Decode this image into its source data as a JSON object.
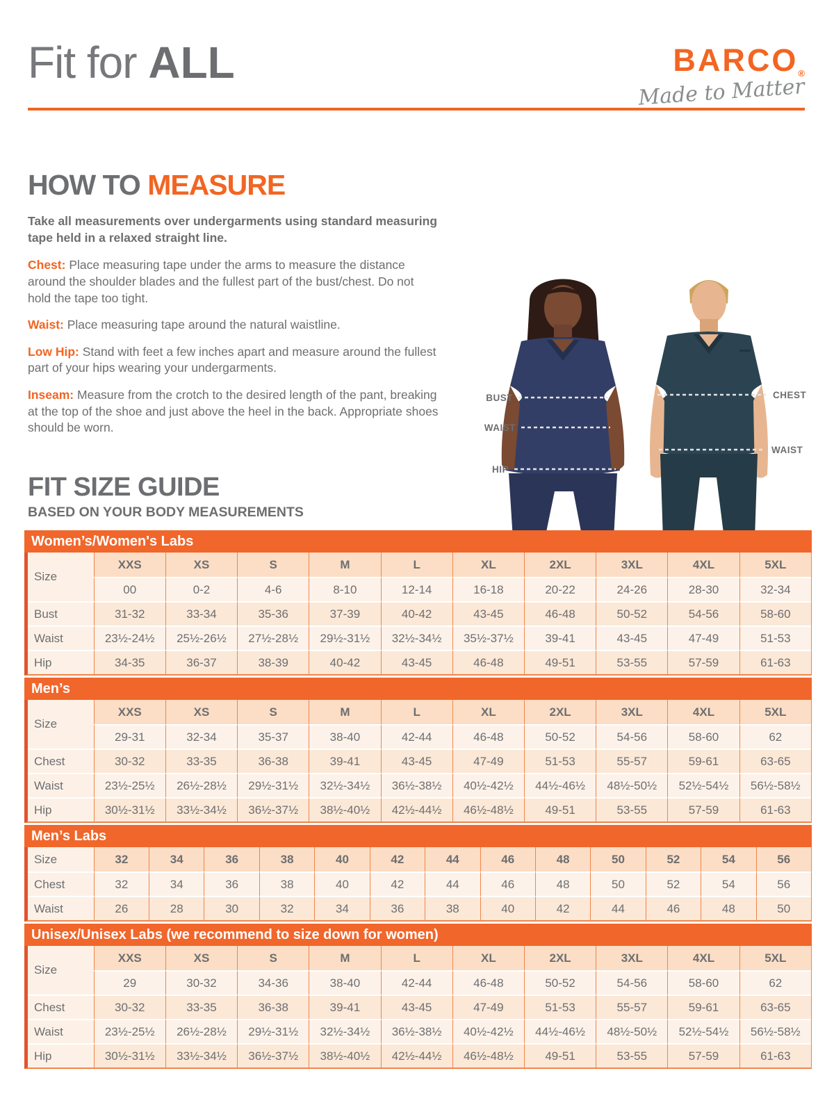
{
  "header": {
    "title_regular": "Fit for ",
    "title_bold": "ALL",
    "brand": "BARCO",
    "brand_reg": "®",
    "tagline": "Made to Matter"
  },
  "how_to_measure": {
    "title_gray": "HOW TO ",
    "title_orange": "MEASURE",
    "intro": "Take all measurements over undergarments using standard measuring tape held in a relaxed straight line.",
    "items": [
      {
        "label": "Chest:",
        "text": "  Place measuring tape under the arms to measure the distance around the shoulder blades and the fullest part of the bust/chest. Do not hold the tape too tight."
      },
      {
        "label": "Waist:",
        "text": "  Place measuring tape around the natural waistline."
      },
      {
        "label": "Low Hip:",
        "text": "  Stand with feet a few inches apart and measure around the fullest part of your hips wearing your undergarments."
      },
      {
        "label": "Inseam:",
        "text": "  Measure from the crotch to the desired length of the pant, breaking at the top of the shoe and just above the heel in the back. Appropriate shoes should be worn."
      }
    ]
  },
  "photo_labels": {
    "left": [
      "BUST",
      "WAIST",
      "HIP"
    ],
    "right": [
      "CHEST",
      "WAIST"
    ]
  },
  "size_guide": {
    "title": "FIT SIZE GUIDE",
    "subtitle": "BASED ON YOUR BODY MEASUREMENTS",
    "tables": [
      {
        "banner": "Women’s/Women's Labs",
        "label_header": "Size",
        "columns": [
          "XXS",
          "XS",
          "S",
          "M",
          "L",
          "XL",
          "2XL",
          "3XL",
          "4XL",
          "5XL"
        ],
        "subrow": [
          "00",
          "0-2",
          "4-6",
          "8-10",
          "12-14",
          "16-18",
          "20-22",
          "24-26",
          "28-30",
          "32-34"
        ],
        "rows": [
          {
            "label": "Bust",
            "values": [
              "31-32",
              "33-34",
              "35-36",
              "37-39",
              "40-42",
              "43-45",
              "46-48",
              "50-52",
              "54-56",
              "58-60"
            ]
          },
          {
            "label": "Waist",
            "values": [
              "23½-24½",
              "25½-26½",
              "27½-28½",
              "29½-31½",
              "32½-34½",
              "35½-37½",
              "39-41",
              "43-45",
              "47-49",
              "51-53"
            ]
          },
          {
            "label": "Hip",
            "values": [
              "34-35",
              "36-37",
              "38-39",
              "40-42",
              "43-45",
              "46-48",
              "49-51",
              "53-55",
              "57-59",
              "61-63"
            ]
          }
        ]
      },
      {
        "banner": "Men’s",
        "label_header": "Size",
        "columns": [
          "XXS",
          "XS",
          "S",
          "M",
          "L",
          "XL",
          "2XL",
          "3XL",
          "4XL",
          "5XL"
        ],
        "subrow": [
          "29-31",
          "32-34",
          "35-37",
          "38-40",
          "42-44",
          "46-48",
          "50-52",
          "54-56",
          "58-60",
          "62"
        ],
        "rows": [
          {
            "label": "Chest",
            "values": [
              "30-32",
              "33-35",
              "36-38",
              "39-41",
              "43-45",
              "47-49",
              "51-53",
              "55-57",
              "59-61",
              "63-65"
            ]
          },
          {
            "label": "Waist",
            "values": [
              "23½-25½",
              "26½-28½",
              "29½-31½",
              "32½-34½",
              "36½-38½",
              "40½-42½",
              "44½-46½",
              "48½-50½",
              "52½-54½",
              "56½-58½"
            ]
          },
          {
            "label": "Hip",
            "values": [
              "30½-31½",
              "33½-34½",
              "36½-37½",
              "38½-40½",
              "42½-44½",
              "46½-48½",
              "49-51",
              "53-55",
              "57-59",
              "61-63"
            ]
          }
        ]
      },
      {
        "banner": "Men’s Labs",
        "label_header": "Size",
        "columns": [
          "32",
          "34",
          "36",
          "38",
          "40",
          "42",
          "44",
          "46",
          "48",
          "50",
          "52",
          "54",
          "56"
        ],
        "subrow": null,
        "rows": [
          {
            "label": "Chest",
            "values": [
              "32",
              "34",
              "36",
              "38",
              "40",
              "42",
              "44",
              "46",
              "48",
              "50",
              "52",
              "54",
              "56"
            ]
          },
          {
            "label": "Waist",
            "values": [
              "26",
              "28",
              "30",
              "32",
              "34",
              "36",
              "38",
              "40",
              "42",
              "44",
              "46",
              "48",
              "50"
            ]
          }
        ]
      },
      {
        "banner": "Unisex/Unisex Labs (we recommend to size down for women)",
        "label_header": "Size",
        "columns": [
          "XXS",
          "XS",
          "S",
          "M",
          "L",
          "XL",
          "2XL",
          "3XL",
          "4XL",
          "5XL"
        ],
        "subrow": [
          "29",
          "30-32",
          "34-36",
          "38-40",
          "42-44",
          "46-48",
          "50-52",
          "54-56",
          "58-60",
          "62"
        ],
        "rows": [
          {
            "label": "Chest",
            "values": [
              "30-32",
              "33-35",
              "36-38",
              "39-41",
              "43-45",
              "47-49",
              "51-53",
              "55-57",
              "59-61",
              "63-65"
            ]
          },
          {
            "label": "Waist",
            "values": [
              "23½-25½",
              "26½-28½",
              "29½-31½",
              "32½-34½",
              "36½-38½",
              "40½-42½",
              "44½-46½",
              "48½-50½",
              "52½-54½",
              "56½-58½"
            ]
          },
          {
            "label": "Hip",
            "values": [
              "30½-31½",
              "33½-34½",
              "36½-37½",
              "38½-40½",
              "42½-44½",
              "46½-48½",
              "49-51",
              "53-55",
              "57-59",
              "61-63"
            ]
          }
        ]
      }
    ]
  },
  "colors": {
    "accent_orange": "#F26522",
    "banner_orange": "#F1662B",
    "table_edge_dark": "#E2532C",
    "grid_orange": "#F0854A",
    "header_peach": "#FBDEC5",
    "row_light": "#FDF2E9",
    "row_mid": "#FBE8D7",
    "text_gray": "#6D6E71"
  }
}
